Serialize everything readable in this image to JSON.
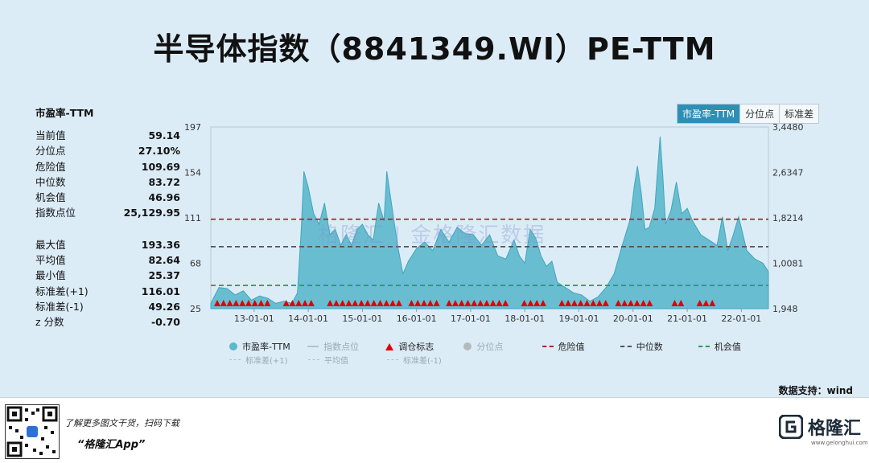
{
  "title": "半导体指数（8841349.WI）PE-TTM",
  "stats": {
    "header": "市盈率-TTM",
    "rows1": [
      {
        "label": "当前值",
        "value": "59.14"
      },
      {
        "label": "分位点",
        "value": "27.10%"
      },
      {
        "label": "危险值",
        "value": "109.69"
      },
      {
        "label": "中位数",
        "value": "83.72"
      },
      {
        "label": "机会值",
        "value": "46.96"
      },
      {
        "label": "指数点位",
        "value": "25,129.95"
      }
    ],
    "rows2": [
      {
        "label": "最大值",
        "value": "193.36"
      },
      {
        "label": "平均值",
        "value": "82.64"
      },
      {
        "label": "最小值",
        "value": "25.37"
      },
      {
        "label": "标准差(+1)",
        "value": "116.01"
      },
      {
        "label": "标准差(-1)",
        "value": "49.26"
      },
      {
        "label": "z 分数",
        "value": "-0.70"
      }
    ]
  },
  "tabs": [
    "市盈率-TTM",
    "分位点",
    "标准差"
  ],
  "legend": {
    "row1": [
      "市盈率-TTM",
      "指数点位",
      "调仓标志",
      "分位点",
      "危险值",
      "中位数",
      "机会值"
    ],
    "row2": [
      "标准差(+1)",
      "平均值",
      "标准差(-1)"
    ]
  },
  "source": "数据支持：wind",
  "footer": {
    "line1": "了解更多图文干货，扫码下载",
    "line2": "“格隆汇App”",
    "logo": "格隆汇",
    "url": "www.gelonghui.com"
  },
  "watermark": "格隆汇  |  金格隆汇数据",
  "colors": {
    "area_fill": "#5cb8cc",
    "area_line": "#3fa6bd",
    "danger": "#a52a2a",
    "median": "#555555",
    "opportunity": "#2e9a4f",
    "marker": "#e00000",
    "tab_active": "#2e8fb5"
  },
  "chart_data": {
    "type": "area",
    "series_name": "市盈率-TTM",
    "y_left_ticks": [
      "197",
      "154",
      "111",
      "68",
      "25"
    ],
    "y_left_range": [
      25,
      197
    ],
    "y_right_ticks": [
      "3,4480",
      "2,6347",
      "1,8214",
      "1,0081",
      "1,948"
    ],
    "x_ticks": [
      "13-01-01",
      "14-01-01",
      "15-01-01",
      "16-01-01",
      "17-01-01",
      "18-01-01",
      "19-01-01",
      "20-01-01",
      "21-01-01",
      "22-01-01"
    ],
    "x_tick_values": [
      2013,
      2014,
      2015,
      2016,
      2017,
      2018,
      2019,
      2020,
      2021,
      2022
    ],
    "x_range": [
      2012.2,
      2022.5
    ],
    "reference_lines": [
      {
        "name": "危险值",
        "value": 109.69
      },
      {
        "name": "中位数",
        "value": 83.72
      },
      {
        "name": "机会值",
        "value": 46.96
      }
    ],
    "x": [
      2012.2,
      2012.35,
      2012.5,
      2012.65,
      2012.8,
      2012.95,
      2013.1,
      2013.25,
      2013.4,
      2013.55,
      2013.7,
      2013.8,
      2013.87,
      2013.92,
      2014.0,
      2014.1,
      2014.2,
      2014.3,
      2014.4,
      2014.5,
      2014.6,
      2014.7,
      2014.8,
      2014.9,
      2015.0,
      2015.1,
      2015.2,
      2015.3,
      2015.4,
      2015.45,
      2015.55,
      2015.65,
      2015.75,
      2015.85,
      2016.0,
      2016.15,
      2016.3,
      2016.45,
      2016.6,
      2016.75,
      2016.9,
      2017.05,
      2017.2,
      2017.35,
      2017.5,
      2017.65,
      2017.8,
      2017.9,
      2018.0,
      2018.1,
      2018.2,
      2018.3,
      2018.4,
      2018.5,
      2018.6,
      2018.75,
      2018.9,
      2019.05,
      2019.2,
      2019.35,
      2019.5,
      2019.65,
      2019.8,
      2019.95,
      2020.02,
      2020.08,
      2020.15,
      2020.22,
      2020.3,
      2020.4,
      2020.5,
      2020.55,
      2020.6,
      2020.7,
      2020.8,
      2020.9,
      2021.0,
      2021.1,
      2021.25,
      2021.4,
      2021.55,
      2021.65,
      2021.75,
      2021.85,
      2021.95,
      2022.1,
      2022.25,
      2022.4,
      2022.5
    ],
    "values": [
      30,
      45,
      44,
      38,
      42,
      33,
      37,
      35,
      30,
      32,
      30,
      40,
      100,
      155,
      140,
      115,
      105,
      125,
      95,
      100,
      85,
      95,
      85,
      100,
      105,
      95,
      90,
      125,
      108,
      155,
      120,
      85,
      58,
      70,
      82,
      88,
      80,
      100,
      88,
      102,
      96,
      95,
      85,
      95,
      75,
      72,
      90,
      75,
      68,
      100,
      92,
      75,
      65,
      70,
      50,
      45,
      40,
      38,
      32,
      36,
      45,
      58,
      85,
      110,
      140,
      160,
      135,
      100,
      102,
      120,
      188,
      150,
      105,
      118,
      145,
      115,
      120,
      108,
      95,
      90,
      85,
      112,
      80,
      95,
      112,
      80,
      72,
      68,
      60
    ],
    "rebalance_marks": 80
  }
}
